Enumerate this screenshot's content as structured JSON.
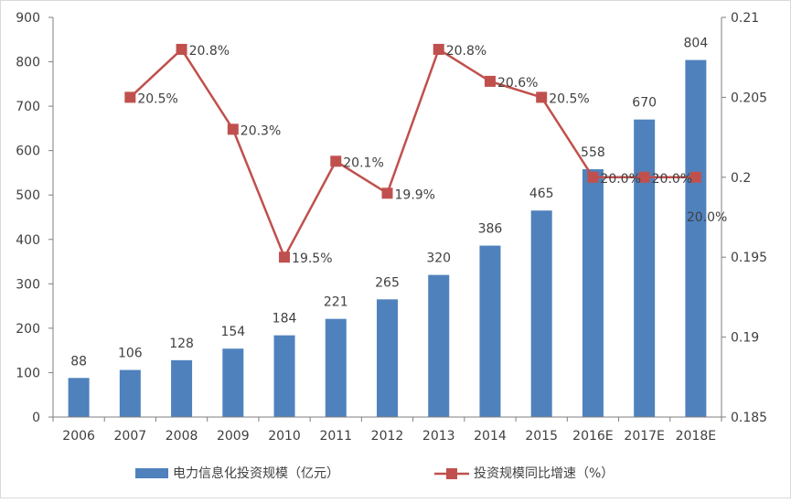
{
  "colors": {
    "bar": "#4f81bd",
    "line": "#c0504d",
    "axis": "#7f7f7f",
    "text": "#404040"
  },
  "chart_data": {
    "type": "bar",
    "title": "",
    "categories": [
      "2006",
      "2007",
      "2008",
      "2009",
      "2010",
      "2011",
      "2012",
      "2013",
      "2014",
      "2015",
      "2016E",
      "2017E",
      "2018E"
    ],
    "ylim_left": [
      0,
      900
    ],
    "yticks_left": [
      "0",
      "100",
      "200",
      "300",
      "400",
      "500",
      "600",
      "700",
      "800",
      "900"
    ],
    "ylim_right": [
      0.185,
      0.21
    ],
    "yticks_right": [
      "0.185",
      "0.19",
      "0.195",
      "0.2",
      "0.205",
      "0.21"
    ],
    "grid": false,
    "legend_position": "bottom",
    "series": [
      {
        "name": "电力信息化投资规模（亿元）",
        "type": "bar",
        "axis": "left",
        "values": [
          88,
          106,
          128,
          154,
          184,
          221,
          265,
          320,
          386,
          465,
          558,
          670,
          804
        ],
        "labels": [
          "88",
          "106",
          "128",
          "154",
          "184",
          "221",
          "265",
          "320",
          "386",
          "465",
          "558",
          "670",
          "804"
        ]
      },
      {
        "name": "投资规模同比增速（%）",
        "type": "line",
        "axis": "right",
        "values": [
          null,
          0.205,
          0.208,
          0.203,
          0.195,
          0.201,
          0.199,
          0.208,
          0.206,
          0.205,
          0.2,
          0.2,
          0.2
        ],
        "labels": [
          "",
          "20.5%",
          "20.8%",
          "20.3%",
          "19.5%",
          "20.1%",
          "19.9%",
          "20.8%",
          "20.6%",
          "20.5%",
          "20.0%",
          "20.0%",
          "20.0%"
        ]
      }
    ]
  }
}
